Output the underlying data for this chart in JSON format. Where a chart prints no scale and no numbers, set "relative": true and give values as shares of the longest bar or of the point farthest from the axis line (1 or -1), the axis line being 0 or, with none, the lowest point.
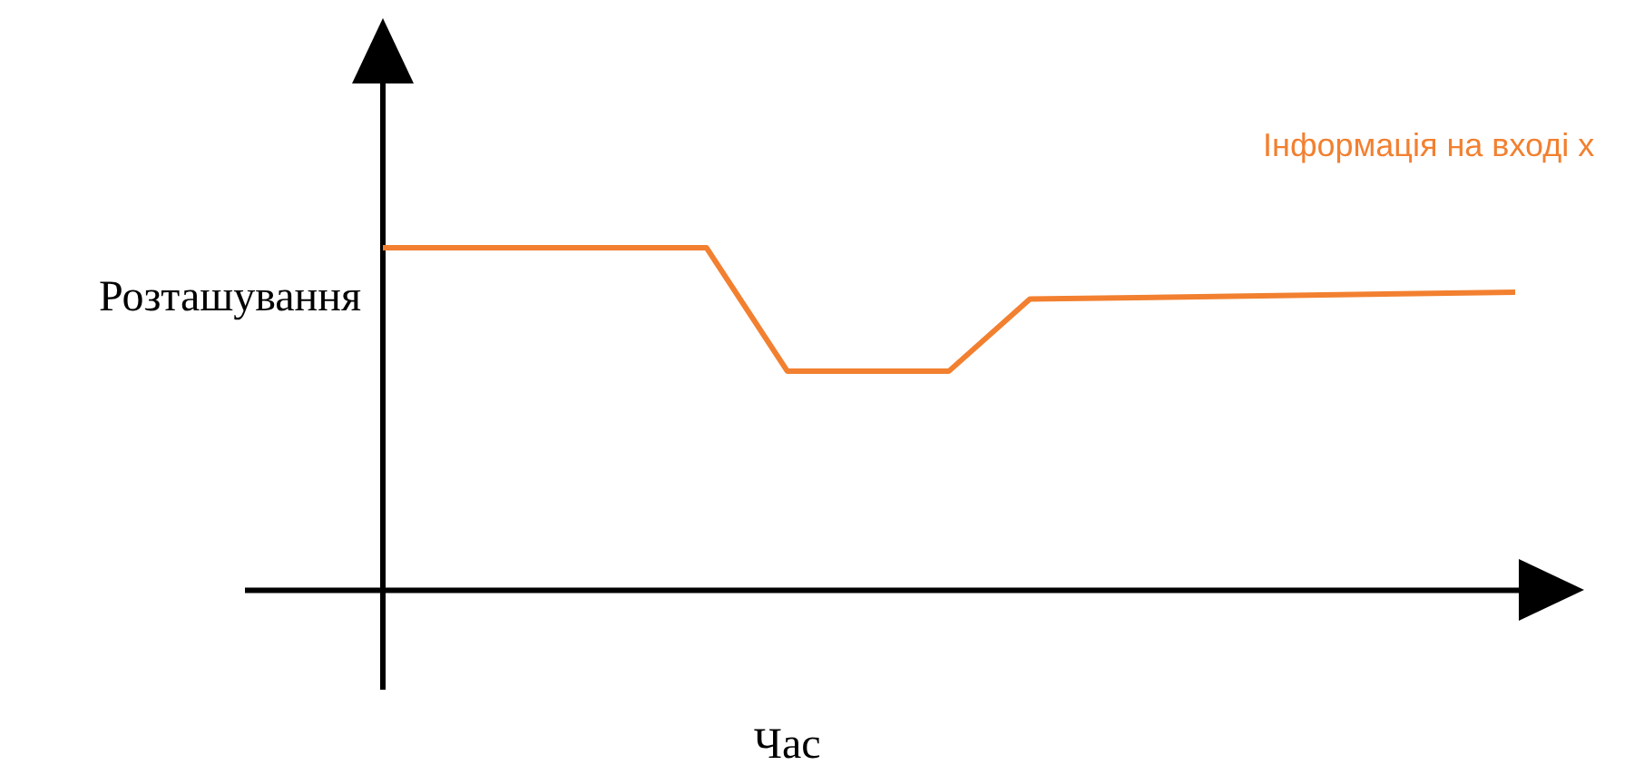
{
  "chart_data": {
    "type": "line",
    "relative": true,
    "xlabel": "Час",
    "ylabel": "Розташування",
    "marker": "none",
    "line_style": "solid",
    "categories": [
      null,
      null,
      null,
      null,
      null,
      null,
      null,
      null,
      null,
      null,
      null,
      null,
      null,
      null,
      null
    ],
    "series": [
      {
        "name": "Інформація на вході x",
        "color": "#f28030",
        "values": [
          1,
          null,
          null,
          null,
          1,
          0.64,
          null,
          0.64,
          0.85,
          null,
          null,
          null,
          null,
          null,
          0.87
        ]
      }
    ]
  }
}
